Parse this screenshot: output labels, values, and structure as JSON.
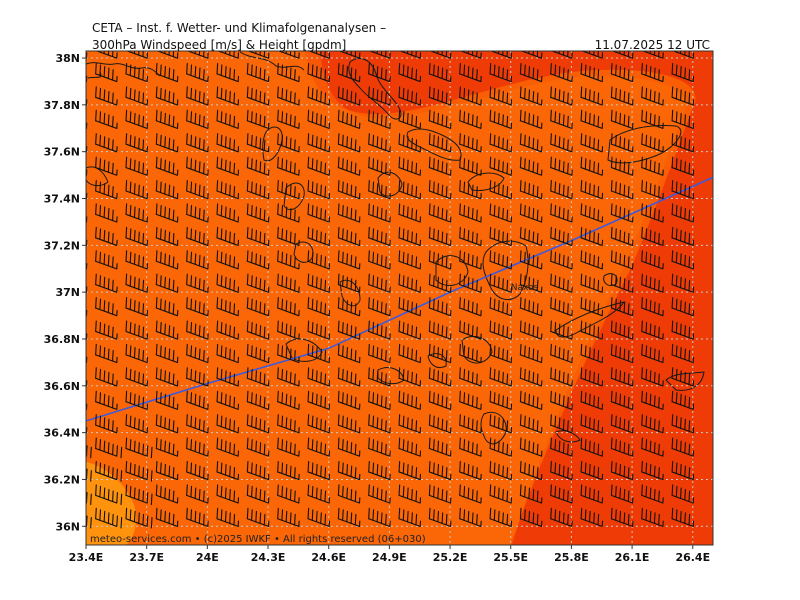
{
  "header": {
    "organization": "CETA – Inst. f. Wetter- und Klimafolgenanalysen –",
    "product": "300hPa Windspeed [m/s] & Height [gpdm]",
    "valid_time": "11.07.2025 12 UTC"
  },
  "footer": {
    "credit": "meteo-services.com • (c)2025 IWKF • All rights reserved (06+030)"
  },
  "map": {
    "lon_range": [
      23.4,
      26.5
    ],
    "lat_range": [
      35.92,
      38.03
    ],
    "lon_ticks": [
      {
        "value": 23.4,
        "label": "23.4E"
      },
      {
        "value": 23.7,
        "label": "23.7E"
      },
      {
        "value": 24.0,
        "label": "24E"
      },
      {
        "value": 24.3,
        "label": "24.3E"
      },
      {
        "value": 24.6,
        "label": "24.6E"
      },
      {
        "value": 24.9,
        "label": "24.9E"
      },
      {
        "value": 25.2,
        "label": "25.2E"
      },
      {
        "value": 25.5,
        "label": "25.5E"
      },
      {
        "value": 25.8,
        "label": "25.8E"
      },
      {
        "value": 26.1,
        "label": "26.1E"
      },
      {
        "value": 26.4,
        "label": "26.4E"
      }
    ],
    "lat_ticks": [
      {
        "value": 38.0,
        "label": "38N"
      },
      {
        "value": 37.8,
        "label": "37.8N"
      },
      {
        "value": 37.6,
        "label": "37.6N"
      },
      {
        "value": 37.4,
        "label": "37.4N"
      },
      {
        "value": 37.2,
        "label": "37.2N"
      },
      {
        "value": 37.0,
        "label": "37N"
      },
      {
        "value": 36.8,
        "label": "36.8N"
      },
      {
        "value": 36.6,
        "label": "36.6N"
      },
      {
        "value": 36.4,
        "label": "36.4N"
      },
      {
        "value": 36.2,
        "label": "36.2N"
      },
      {
        "value": 36.0,
        "label": "36N"
      }
    ],
    "grid": true,
    "place_labels": [
      {
        "name": "Naxos",
        "lon": 25.5,
        "lat": 37.01
      }
    ],
    "colors": {
      "band_darkest": "#ef3c06",
      "band_dark": "#f95e05",
      "band_mid": "#fd7a09",
      "band_light": "#ff930e",
      "height_contour": "#3c5ae0",
      "coast": "#1a1a1a",
      "grid": "#c8c8c8"
    },
    "height_contour": {
      "points": [
        [
          23.4,
          36.45
        ],
        [
          24.0,
          36.61
        ],
        [
          24.6,
          36.76
        ],
        [
          25.2,
          37.0
        ],
        [
          25.8,
          37.22
        ],
        [
          26.5,
          37.49
        ]
      ]
    },
    "wind_barbs": {
      "lon_start": 23.4,
      "lon_step": 0.15,
      "lon_count": 21,
      "lat_start": 36.0,
      "lat_step": 0.1,
      "lat_count": 21,
      "direction_deg": 290,
      "knots_default": 55
    }
  }
}
